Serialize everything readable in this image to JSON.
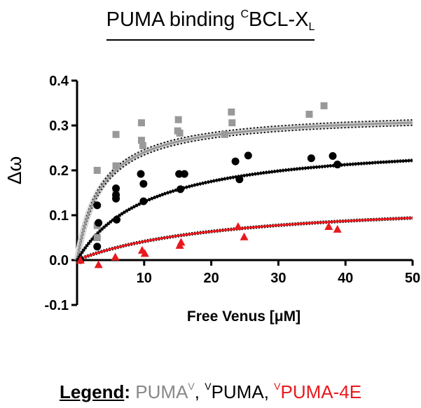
{
  "title": {
    "main": "PUMA binding ",
    "superscript": "C",
    "protein": "BCL-X",
    "subscript": "L"
  },
  "legend": {
    "label": "Legend",
    "colon": ":",
    "items": [
      {
        "prefix_sup": "",
        "name": "PUMA",
        "suffix_sup": "V",
        "sep": ", ",
        "color": "#888888"
      },
      {
        "prefix_sup": "V",
        "name": "PUMA",
        "suffix_sup": "",
        "sep": ", ",
        "color": "#000000"
      },
      {
        "prefix_sup": "V",
        "name": "PUMA-4E",
        "suffix_sup": "",
        "sep": "",
        "color": "#e8191e"
      }
    ]
  },
  "chart_data": {
    "type": "scatter",
    "title": "PUMA binding CBCL-XL",
    "xlabel": "Free Venus [μM]",
    "ylabel": "Δω",
    "xlim": [
      0,
      50
    ],
    "ylim": [
      -0.1,
      0.4
    ],
    "xticks": [
      10,
      20,
      30,
      40,
      50
    ],
    "yticks": [
      -0.1,
      0.0,
      0.1,
      0.2,
      0.3,
      0.4
    ],
    "ytick_labels": [
      "-0.1",
      "0.0",
      "0.1",
      "0.2",
      "0.3",
      "0.4"
    ],
    "grid": false,
    "legend_position": "bottom",
    "series": [
      {
        "name": "PUMA^V",
        "color": "#999999",
        "marker": "square",
        "points": [
          [
            0.5,
            0.0
          ],
          [
            3.0,
            0.2
          ],
          [
            3.0,
            0.077
          ],
          [
            3.0,
            0.05
          ],
          [
            5.8,
            0.28
          ],
          [
            5.8,
            0.21
          ],
          [
            5.8,
            0.15
          ],
          [
            9.6,
            0.306
          ],
          [
            9.6,
            0.267
          ],
          [
            9.8,
            0.255
          ],
          [
            15.1,
            0.313
          ],
          [
            15.0,
            0.288
          ],
          [
            15.3,
            0.283
          ],
          [
            23.0,
            0.33
          ],
          [
            23.1,
            0.306
          ],
          [
            22.0,
            0.28
          ],
          [
            34.6,
            0.325
          ],
          [
            36.8,
            0.344
          ]
        ],
        "fit": {
          "model": "one-site binding",
          "Bmax": 0.329,
          "Kd": 3.7,
          "band": true
        }
      },
      {
        "name": "VPUMA",
        "color": "#000000",
        "marker": "circle",
        "points": [
          [
            0.5,
            0.0
          ],
          [
            3.0,
            0.122
          ],
          [
            3.2,
            0.083
          ],
          [
            3.0,
            0.03
          ],
          [
            5.8,
            0.16
          ],
          [
            5.8,
            0.145
          ],
          [
            5.8,
            0.137
          ],
          [
            5.9,
            0.09
          ],
          [
            9.5,
            0.192
          ],
          [
            9.9,
            0.17
          ],
          [
            9.9,
            0.131
          ],
          [
            15.2,
            0.192
          ],
          [
            16.0,
            0.192
          ],
          [
            15.4,
            0.158
          ],
          [
            23.6,
            0.22
          ],
          [
            25.5,
            0.233
          ],
          [
            24.2,
            0.18
          ],
          [
            34.9,
            0.227
          ],
          [
            38.1,
            0.232
          ],
          [
            38.8,
            0.213
          ]
        ],
        "fit": {
          "model": "one-site binding",
          "Bmax": 0.27,
          "Kd": 10.8
        }
      },
      {
        "name": "VPUMA-4E",
        "color": "#e8191e",
        "marker": "triangle",
        "points": [
          [
            0.5,
            0.0
          ],
          [
            3.2,
            -0.01
          ],
          [
            5.7,
            0.007
          ],
          [
            9.7,
            0.022
          ],
          [
            10.1,
            0.015
          ],
          [
            15.3,
            0.033
          ],
          [
            15.5,
            0.04
          ],
          [
            24.0,
            0.075
          ],
          [
            24.9,
            0.052
          ],
          [
            37.5,
            0.075
          ],
          [
            38.8,
            0.069
          ]
        ],
        "fit": {
          "model": "one-site binding",
          "Bmax": 0.137,
          "Kd": 23
        }
      }
    ]
  }
}
